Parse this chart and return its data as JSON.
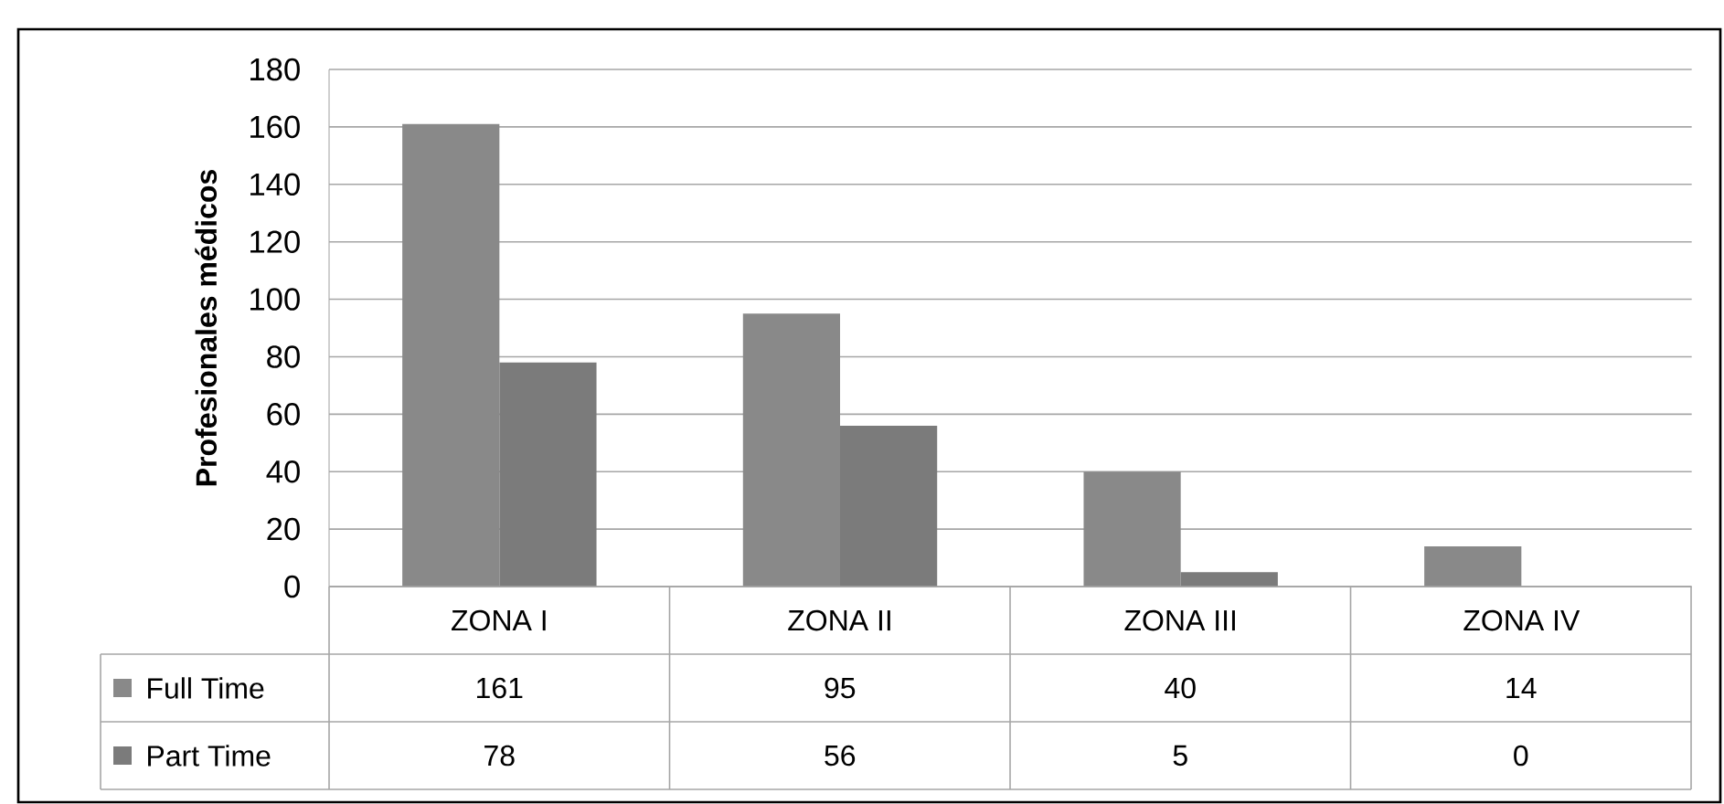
{
  "chart_data": {
    "type": "bar",
    "ylabel": "Profesionales   médicos",
    "categories": [
      "ZONA I",
      "ZONA II",
      "ZONA III",
      "ZONA IV"
    ],
    "series": [
      {
        "name": "Full Time",
        "color": "#898989",
        "values": [
          161,
          95,
          40,
          14
        ],
        "value_labels": [
          "161",
          "95",
          "40",
          "14"
        ]
      },
      {
        "name": "Part Time",
        "color": "#7b7b7b",
        "values": [
          78,
          56,
          5,
          0
        ],
        "value_labels": [
          "78",
          "56",
          "5",
          "0"
        ]
      }
    ],
    "ylim": [
      0,
      180
    ],
    "yticks": [
      0,
      20,
      40,
      60,
      80,
      100,
      120,
      140,
      160,
      180
    ],
    "grid": "y",
    "legend": "bottom"
  }
}
